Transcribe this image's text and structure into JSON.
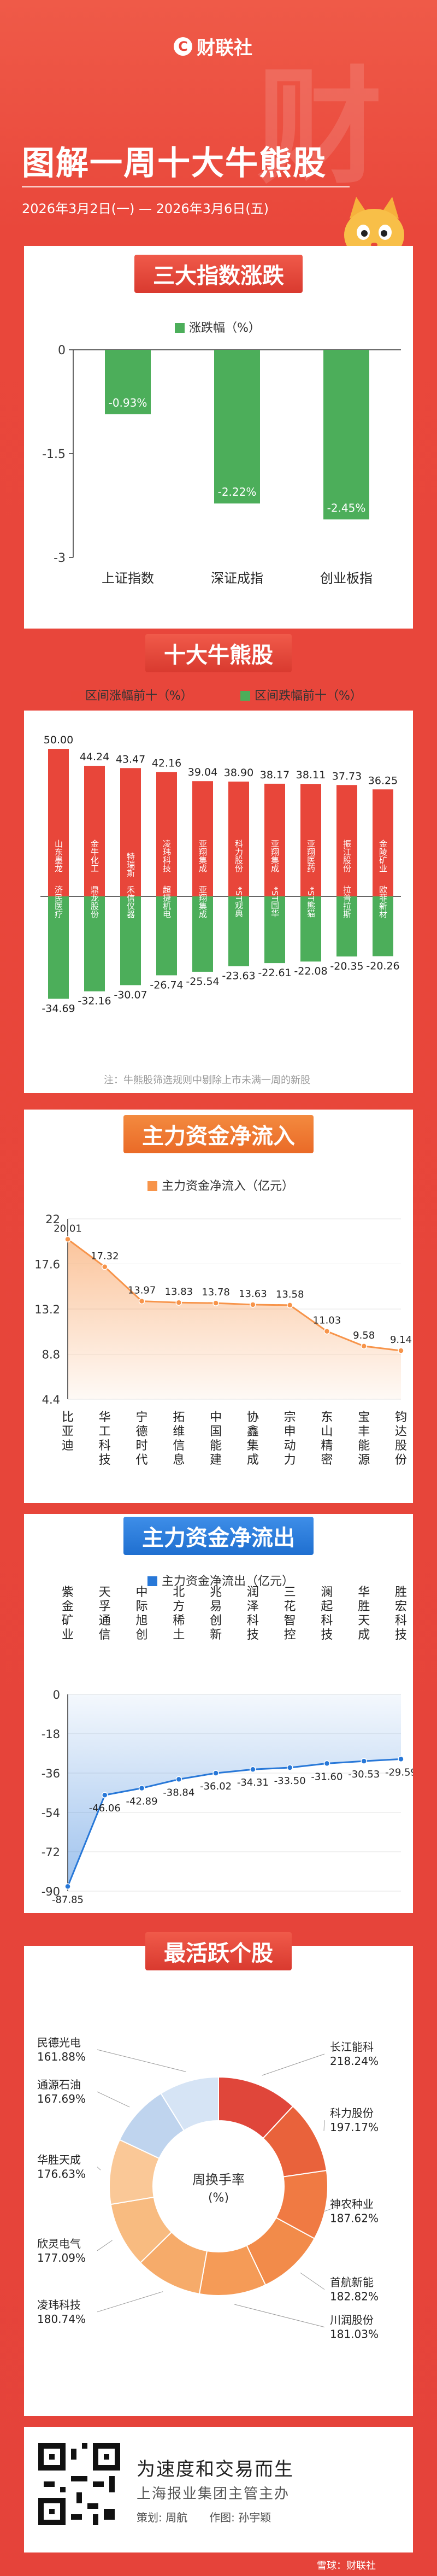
{
  "header": {
    "logo_text": "财联社",
    "title": "图解一周十大牛熊股",
    "date_range": "2026年3月2日(一) — 2026年3月6日(五)",
    "bg_mark": "财"
  },
  "colors": {
    "red": "#e8463a",
    "green": "#4cae5a",
    "orange": "#f7944a",
    "blue": "#2878d8",
    "bear_label": "#2e9a46"
  },
  "sections": {
    "index": "三大指数涨跌",
    "top_movers": "十大牛熊股",
    "inflow": "主力资金净流入",
    "outflow": "主力资金净流出",
    "active": "最活跃个股"
  },
  "legends": {
    "index": "涨跌幅（%）",
    "gain": "区间涨幅前十（%）",
    "loss": "区间跌幅前十（%）",
    "inflow": "主力资金净流入（亿元）",
    "outflow": "主力资金净流出（亿元）"
  },
  "note": "注：牛熊股筛选规则中剔除上市未满一周的新股",
  "active_center": {
    "line1": "周换手率",
    "line2": "(%)"
  },
  "footer": {
    "slogan1": "为速度和交易而生",
    "slogan2": "上海报业集团主管主办",
    "credits": "策划: 周航　　作图: 孙宇颖",
    "watermark": "雪球：财联社"
  },
  "chart_data": [
    {
      "type": "bar",
      "title": "三大指数涨跌",
      "categories": [
        "上证指数",
        "深证成指",
        "创业板指"
      ],
      "series": [
        {
          "name": "涨跌幅（%）",
          "values": [
            -0.93,
            -2.22,
            -2.45
          ]
        }
      ],
      "ylim": [
        -3,
        0
      ],
      "yticks": [
        0,
        -1.5,
        -3
      ],
      "yticklabels": [
        "0",
        "-1.5",
        "-3"
      ]
    },
    {
      "type": "bar",
      "title": "十大牛熊股",
      "gainers": [
        {
          "name": "山东墨龙",
          "value": 50.0,
          "label": "50.00"
        },
        {
          "name": "金牛化工",
          "value": 44.24,
          "label": "44.24"
        },
        {
          "name": "特瑞斯",
          "value": 43.47,
          "label": "43.47"
        },
        {
          "name": "凌玮科技",
          "value": 42.16,
          "label": "42.16"
        },
        {
          "name": "亚翔集成",
          "value": 39.04,
          "label": "39.04"
        },
        {
          "name": "科力股份",
          "value": 38.9,
          "label": "38.90"
        },
        {
          "name": "亚翔集成",
          "value": 38.17,
          "label": "38.17"
        },
        {
          "name": "亚翔医药",
          "value": 38.11,
          "label": "38.11"
        },
        {
          "name": "振江股份",
          "value": 37.73,
          "label": "37.73"
        },
        {
          "name": "金陵矿业",
          "value": 36.25,
          "label": "36.25"
        }
      ],
      "losers": [
        {
          "name": "济民医疗",
          "value": -34.69,
          "label": "-34.69"
        },
        {
          "name": "鼎龙股份",
          "value": -32.16,
          "label": "-32.16"
        },
        {
          "name": "禾信仪器",
          "value": -30.07,
          "label": "-30.07"
        },
        {
          "name": "超捷机电",
          "value": -26.74,
          "label": "-26.74"
        },
        {
          "name": "亚翔集成",
          "value": -25.54,
          "label": "-25.54"
        },
        {
          "name": "*ST观典",
          "value": -23.63,
          "label": "-23.63"
        },
        {
          "name": "*ST国华",
          "value": -22.61,
          "label": "-22.61"
        },
        {
          "name": "*ST熊猫",
          "value": -22.08,
          "label": "-22.08"
        },
        {
          "name": "拉普拉斯",
          "value": -20.35,
          "label": "-20.35"
        },
        {
          "name": "欧菲新材",
          "value": -20.26,
          "label": "-20.26"
        }
      ]
    },
    {
      "type": "area",
      "title": "主力资金净流入",
      "series": [
        {
          "name": "主力资金净流入（亿元）",
          "values": [
            20.01,
            17.32,
            13.97,
            13.83,
            13.78,
            13.63,
            13.58,
            11.03,
            9.58,
            9.14
          ]
        }
      ],
      "value_labels": [
        "20.01",
        "17.32",
        "13.97",
        "13.83",
        "13.78",
        "13.63",
        "13.58",
        "11.03",
        "9.58",
        "9.14"
      ],
      "categories": [
        "比亚迪",
        "华工科技",
        "宁德时代",
        "拓维信息",
        "中国能建",
        "协鑫集成",
        "宗申动力",
        "东山精密",
        "宝丰能源",
        "钧达股份"
      ],
      "ylim": [
        4.4,
        22
      ],
      "yticks": [
        22,
        17.6,
        13.2,
        8.8,
        4.4
      ],
      "yticklabels": [
        "22",
        "17.6",
        "13.2",
        "8.8",
        "4.4"
      ]
    },
    {
      "type": "area",
      "title": "主力资金净流出",
      "series": [
        {
          "name": "主力资金净流出（亿元）",
          "values": [
            -87.85,
            -46.06,
            -42.89,
            -38.84,
            -36.02,
            -34.31,
            -33.5,
            -31.6,
            -30.53,
            -29.59
          ]
        }
      ],
      "value_labels": [
        "-87.85",
        "-46.06",
        "-42.89",
        "-38.84",
        "-36.02",
        "-34.31",
        "-33.50",
        "-31.60",
        "-30.53",
        "-29.59"
      ],
      "categories": [
        "紫金矿业",
        "天孚通信",
        "中际旭创",
        "北方稀土",
        "兆易创新",
        "润泽科技",
        "三花智控",
        "澜起科技",
        "华胜天成",
        "胜宏科技"
      ],
      "ylim": [
        -90,
        0
      ],
      "yticks": [
        0,
        -18,
        -36,
        -54,
        -72,
        -90
      ],
      "yticklabels": [
        "0",
        "-18",
        "-36",
        "-54",
        "-72",
        "-90"
      ]
    },
    {
      "type": "pie",
      "title": "最活跃个股",
      "slices": [
        {
          "name": "长江能科",
          "value": 218.24,
          "label": "218.24%"
        },
        {
          "name": "科力股份",
          "value": 197.17,
          "label": "197.17%"
        },
        {
          "name": "神农种业",
          "value": 187.62,
          "label": "187.62%"
        },
        {
          "name": "首航新能",
          "value": 182.82,
          "label": "182.82%"
        },
        {
          "name": "川润股份",
          "value": 181.03,
          "label": "181.03%"
        },
        {
          "name": "凌玮科技",
          "value": 180.74,
          "label": "180.74%"
        },
        {
          "name": "欣灵电气",
          "value": 177.09,
          "label": "177.09%"
        },
        {
          "name": "华胜天成",
          "value": 176.63,
          "label": "176.63%"
        },
        {
          "name": "通源石油",
          "value": 167.69,
          "label": "167.69%"
        },
        {
          "name": "民德光电",
          "value": 161.88,
          "label": "161.88%"
        }
      ],
      "colors": [
        "#e0463a",
        "#e9623b",
        "#f07a43",
        "#f28b4a",
        "#f59b57",
        "#f6ab6a",
        "#f8bb80",
        "#fac897",
        "#bfd4ee",
        "#d6e4f5"
      ]
    }
  ]
}
